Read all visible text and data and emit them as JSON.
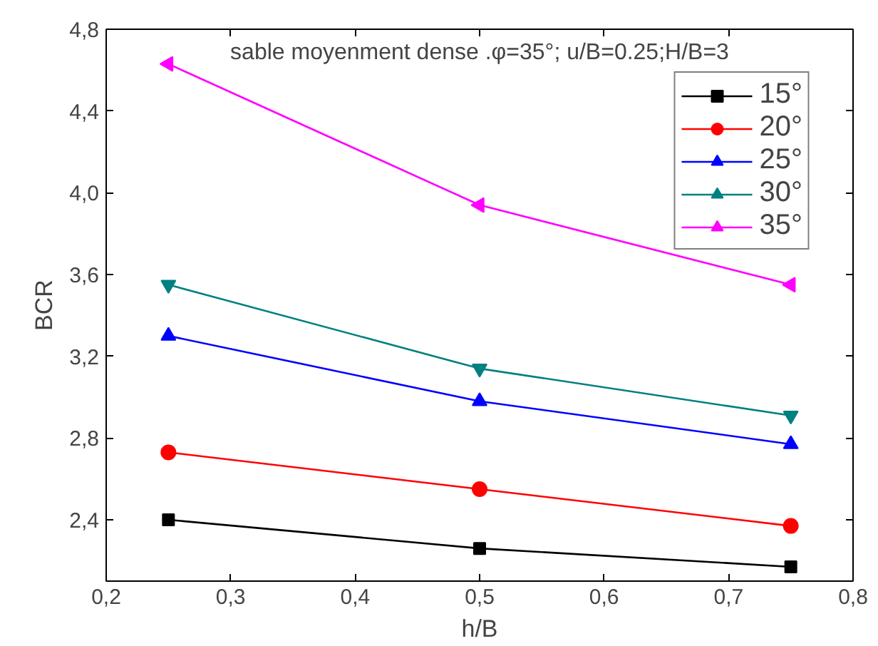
{
  "chart_data": {
    "type": "line",
    "title": "sable moyenment dense .φ=35°; u/B=0.25;H/B=3",
    "xlabel": "h/B",
    "ylabel": "BCR",
    "x": [
      0.25,
      0.5,
      0.75
    ],
    "series": [
      {
        "name": "15°",
        "color": "#000000",
        "marker": "square",
        "values": [
          2.4,
          2.26,
          2.17
        ]
      },
      {
        "name": "20°",
        "color": "#ff0000",
        "marker": "circle",
        "values": [
          2.73,
          2.55,
          2.37
        ]
      },
      {
        "name": "25°",
        "color": "#0000ff",
        "marker": "triangle",
        "values": [
          3.3,
          2.98,
          2.77
        ]
      },
      {
        "name": "30°",
        "color": "#008080",
        "marker": "triangle",
        "values": [
          3.55,
          3.14,
          2.91
        ]
      },
      {
        "name": "35°",
        "color": "#ff00ff",
        "marker": "triangle",
        "values": [
          4.63,
          3.94,
          3.55
        ]
      }
    ],
    "xlim": [
      0.2,
      0.8
    ],
    "xticks": [
      {
        "value": 0.2,
        "label": "0,2"
      },
      {
        "value": 0.3,
        "label": "0,3"
      },
      {
        "value": 0.4,
        "label": "0,4"
      },
      {
        "value": 0.5,
        "label": "0,5"
      },
      {
        "value": 0.6,
        "label": "0,6"
      },
      {
        "value": 0.7,
        "label": "0,7"
      },
      {
        "value": 0.8,
        "label": "0,8"
      }
    ],
    "ylim": [
      2.1,
      4.8
    ],
    "yticks": [
      {
        "value": 2.4,
        "label": "2,4"
      },
      {
        "value": 2.8,
        "label": "2,8"
      },
      {
        "value": 3.2,
        "label": "3,2"
      },
      {
        "value": 3.6,
        "label": "3,6"
      },
      {
        "value": 4.0,
        "label": "4,0"
      },
      {
        "value": 4.4,
        "label": "4,4"
      },
      {
        "value": 4.8,
        "label": "4,8"
      }
    ],
    "grid": false,
    "legend": "top right",
    "line_style": "solid"
  }
}
